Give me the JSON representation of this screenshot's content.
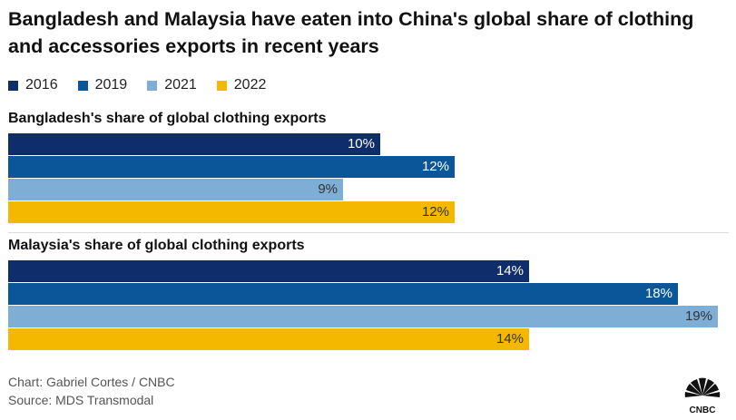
{
  "title": "Bangladesh and Malaysia have eaten into China's global share of clothing and accessories exports in recent years",
  "legend": [
    {
      "label": "2016",
      "color": "#0f2d6b"
    },
    {
      "label": "2019",
      "color": "#0a5699"
    },
    {
      "label": "2021",
      "color": "#7eadd6"
    },
    {
      "label": "2022",
      "color": "#f5b800"
    }
  ],
  "chart_data": [
    {
      "type": "bar",
      "orientation": "horizontal",
      "title": "Bangladesh's share of global clothing exports",
      "categories": [
        "2016",
        "2019",
        "2021",
        "2022"
      ],
      "values": [
        10,
        12,
        9,
        12
      ],
      "data_labels": [
        "10%",
        "12%",
        "9%",
        "12%"
      ],
      "unit": "%"
    },
    {
      "type": "bar",
      "orientation": "horizontal",
      "title": "Malaysia's share of global clothing exports",
      "categories": [
        "2016",
        "2019",
        "2021",
        "2022"
      ],
      "values": [
        14,
        18,
        19,
        14
      ],
      "data_labels": [
        "14%",
        "18%",
        "19%",
        "14%"
      ],
      "unit": "%"
    }
  ],
  "footer": {
    "credit": "Chart: Gabriel Cortes / CNBC",
    "source": "Source: MDS Transmodal"
  },
  "logo": {
    "text": "CNBC",
    "icon": "cnbc-peacock-icon"
  }
}
